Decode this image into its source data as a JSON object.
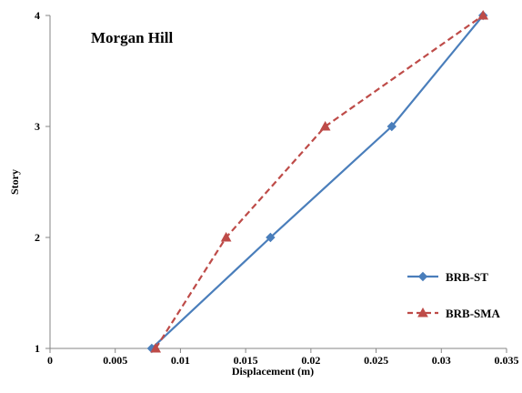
{
  "chart_data": {
    "type": "line",
    "title": "Morgan Hill",
    "xlabel": "Displacement (m)",
    "ylabel": "Story",
    "xlim": [
      0,
      0.035
    ],
    "ylim": [
      1,
      4
    ],
    "x_ticks": [
      0,
      0.005,
      0.01,
      0.015,
      0.02,
      0.025,
      0.03,
      0.035
    ],
    "x_tick_labels": [
      "0",
      "0.005",
      "0.01",
      "0.015",
      "0.02",
      "0.025",
      "0.03",
      "0.035"
    ],
    "y_ticks": [
      1,
      2,
      3,
      4
    ],
    "y_tick_labels": [
      "1",
      "2",
      "3",
      "4"
    ],
    "grid": false,
    "legend_position": "right",
    "series": [
      {
        "name": "BRB-ST",
        "x": [
          0.0078,
          0.0169,
          0.0262,
          0.0332
        ],
        "y": [
          1,
          2,
          3,
          4
        ],
        "color": "#4a7ebb",
        "line_style": "solid",
        "marker": "diamond"
      },
      {
        "name": "BRB-SMA",
        "x": [
          0.0081,
          0.0135,
          0.0211,
          0.0332
        ],
        "y": [
          1,
          2,
          3,
          4
        ],
        "color": "#be4b48",
        "line_style": "dashed",
        "marker": "triangle"
      }
    ]
  }
}
